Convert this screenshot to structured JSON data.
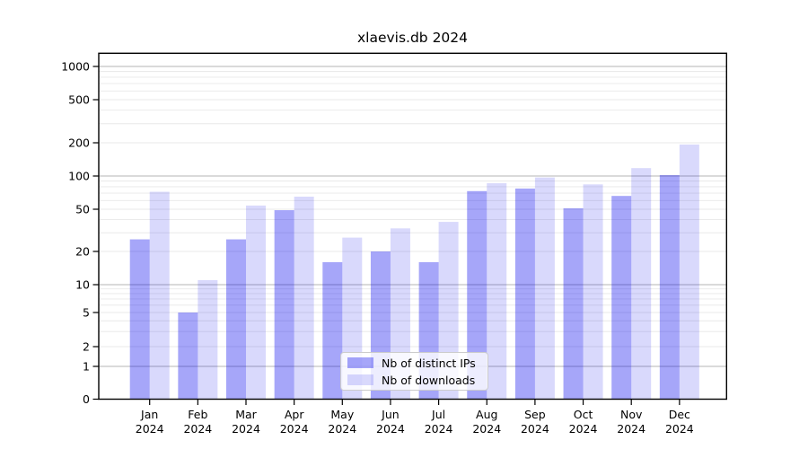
{
  "chart_data": {
    "type": "bar",
    "title": "xlaevis.db 2024",
    "categories": [
      "Jan",
      "Feb",
      "Mar",
      "Apr",
      "May",
      "Jun",
      "Jul",
      "Aug",
      "Sep",
      "Oct",
      "Nov",
      "Dec"
    ],
    "category_year": "2024",
    "series": [
      {
        "name": "Nb of distinct IPs",
        "color": "rgba(0,0,238,0.35)",
        "values": [
          26,
          5,
          26,
          49,
          16,
          20,
          16,
          73,
          77,
          51,
          66,
          102
        ]
      },
      {
        "name": "Nb of downloads",
        "color": "rgba(0,0,238,0.15)",
        "values": [
          72,
          11,
          54,
          65,
          27,
          33,
          38,
          86,
          97,
          84,
          118,
          193
        ]
      }
    ],
    "yticks": [
      0,
      1,
      2,
      5,
      10,
      20,
      50,
      100,
      200,
      500,
      1000
    ],
    "minor_gridlines": [
      3,
      4,
      6,
      7,
      8,
      9,
      30,
      40,
      60,
      70,
      80,
      90,
      300,
      400,
      600,
      700,
      800,
      900
    ],
    "yscale": "log-like (symlog, zero shown)",
    "ylim": [
      0,
      1300
    ],
    "xlabel": "",
    "ylabel": "",
    "grid": true,
    "legend_position": "lower center",
    "colors": {
      "major_grid": "#b4b4b4",
      "minor_grid": "#e8e8e8",
      "axis": "#000000"
    }
  }
}
